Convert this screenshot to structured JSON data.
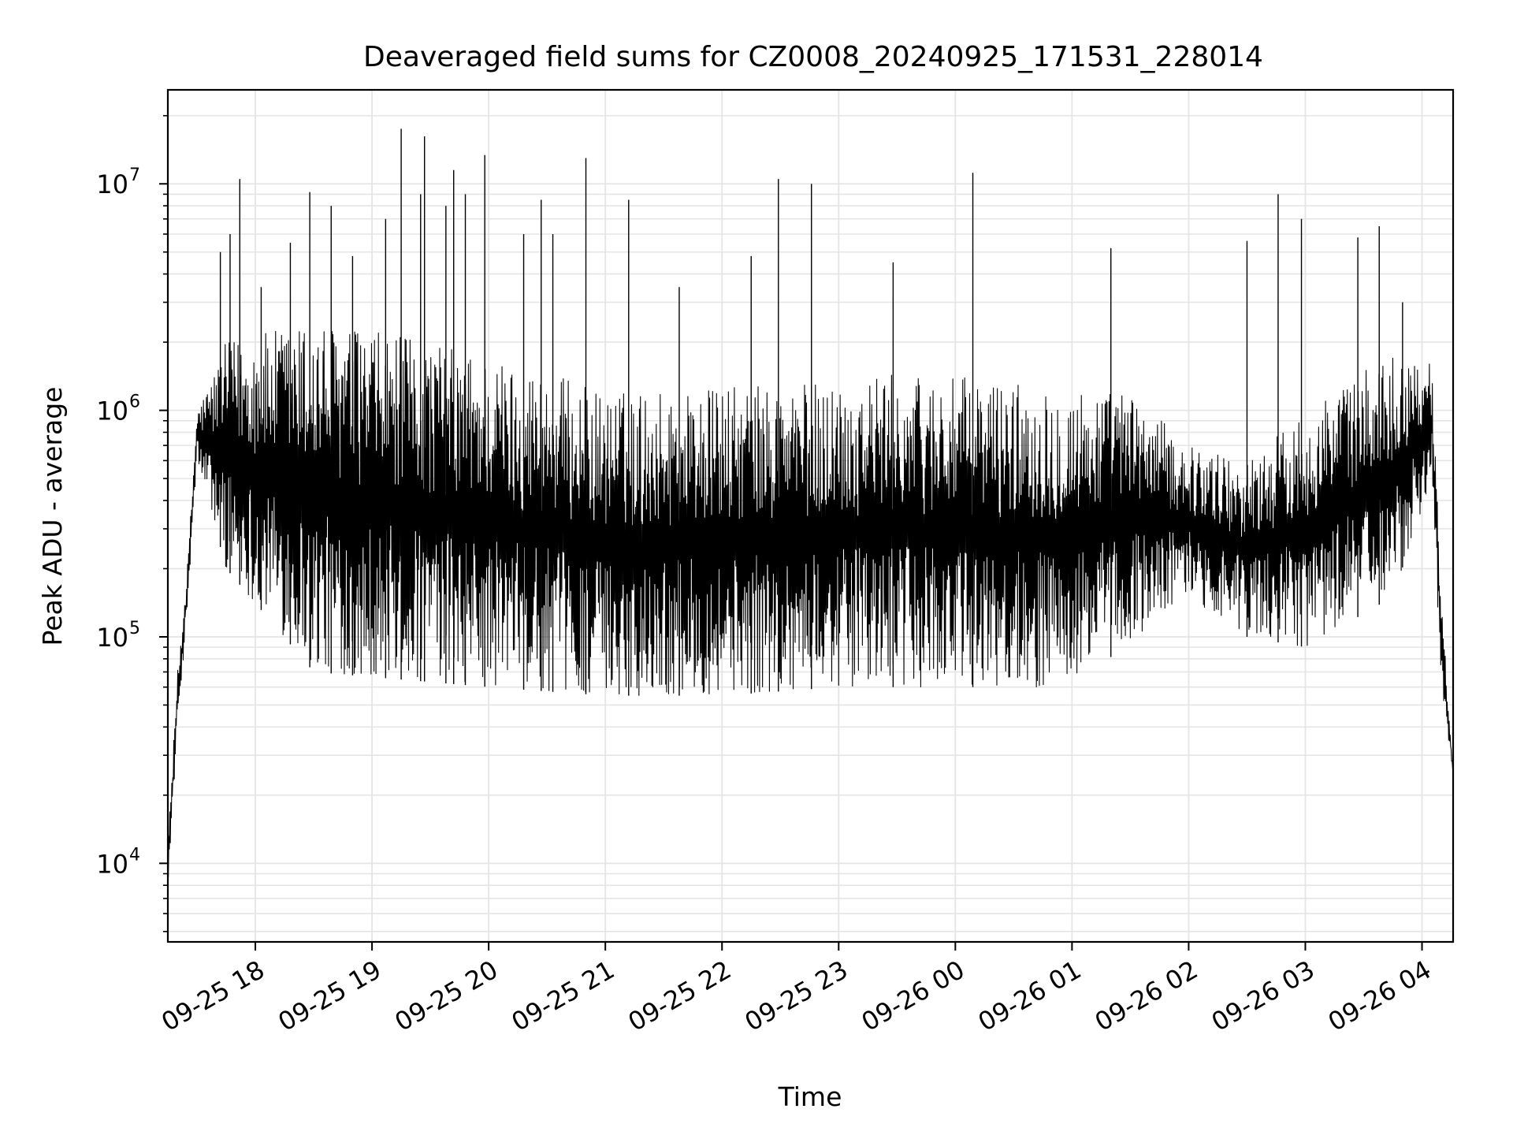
{
  "chart_data": {
    "type": "line",
    "title": "Deaveraged field sums for CZ0008_20240925_171531_228014",
    "xlabel": "Time",
    "ylabel": "Peak ADU - average",
    "yscale": "log",
    "ylim": [
      4500,
      26000000
    ],
    "xlim": [
      "2024-09-25 17:15",
      "2024-09-26 04:16"
    ],
    "grid": true,
    "line_color": "#000000",
    "grid_color": "#e5e5e5",
    "x_ticks": [
      {
        "value": "2024-09-25 18:00",
        "label": "09-25 18"
      },
      {
        "value": "2024-09-25 19:00",
        "label": "09-25 19"
      },
      {
        "value": "2024-09-25 20:00",
        "label": "09-25 20"
      },
      {
        "value": "2024-09-25 21:00",
        "label": "09-25 21"
      },
      {
        "value": "2024-09-25 22:00",
        "label": "09-25 22"
      },
      {
        "value": "2024-09-25 23:00",
        "label": "09-25 23"
      },
      {
        "value": "2024-09-26 00:00",
        "label": "09-26 00"
      },
      {
        "value": "2024-09-26 01:00",
        "label": "09-26 01"
      },
      {
        "value": "2024-09-26 02:00",
        "label": "09-26 02"
      },
      {
        "value": "2024-09-26 03:00",
        "label": "09-26 03"
      },
      {
        "value": "2024-09-26 04:00",
        "label": "09-26 04"
      }
    ],
    "y_ticks": [
      {
        "value": 10000,
        "base": "10",
        "exp": "4"
      },
      {
        "value": 100000,
        "base": "10",
        "exp": "5"
      },
      {
        "value": 1000000,
        "base": "10",
        "exp": "6"
      },
      {
        "value": 10000000,
        "base": "10",
        "exp": "7"
      }
    ],
    "envelope": {
      "description_time_unit": "time",
      "upper": [
        {
          "t": "2024-09-25 17:15",
          "y": 12000
        },
        {
          "t": "2024-09-25 17:20",
          "y": 70000
        },
        {
          "t": "2024-09-25 17:25",
          "y": 200000
        },
        {
          "t": "2024-09-25 17:30",
          "y": 1000000
        },
        {
          "t": "2024-09-25 17:45",
          "y": 2000000
        },
        {
          "t": "2024-09-25 18:30",
          "y": 2500000
        },
        {
          "t": "2024-09-25 19:30",
          "y": 2000000
        },
        {
          "t": "2024-09-25 20:30",
          "y": 1500000
        },
        {
          "t": "2024-09-25 21:00",
          "y": 1200000
        },
        {
          "t": "2024-09-25 22:30",
          "y": 1300000
        },
        {
          "t": "2024-09-25 23:30",
          "y": 1450000
        },
        {
          "t": "2024-09-26 00:30",
          "y": 1350000
        },
        {
          "t": "2024-09-26 01:30",
          "y": 1200000
        },
        {
          "t": "2024-09-26 02:00",
          "y": 700000
        },
        {
          "t": "2024-09-26 02:30",
          "y": 600000
        },
        {
          "t": "2024-09-26 03:00",
          "y": 1000000
        },
        {
          "t": "2024-09-26 03:45",
          "y": 1800000
        },
        {
          "t": "2024-09-26 04:05",
          "y": 1600000
        },
        {
          "t": "2024-09-26 04:10",
          "y": 150000
        },
        {
          "t": "2024-09-26 04:16",
          "y": 25000
        }
      ],
      "lower": [
        {
          "t": "2024-09-25 17:15",
          "y": 8000
        },
        {
          "t": "2024-09-25 17:20",
          "y": 40000
        },
        {
          "t": "2024-09-25 17:25",
          "y": 130000
        },
        {
          "t": "2024-09-25 17:30",
          "y": 600000
        },
        {
          "t": "2024-09-25 17:45",
          "y": 200000
        },
        {
          "t": "2024-09-25 18:30",
          "y": 70000
        },
        {
          "t": "2024-09-25 20:00",
          "y": 60000
        },
        {
          "t": "2024-09-25 21:00",
          "y": 55000
        },
        {
          "t": "2024-09-25 22:00",
          "y": 55000
        },
        {
          "t": "2024-09-25 23:00",
          "y": 60000
        },
        {
          "t": "2024-09-26 00:00",
          "y": 60000
        },
        {
          "t": "2024-09-26 01:00",
          "y": 60000
        },
        {
          "t": "2024-09-26 02:00",
          "y": 150000
        },
        {
          "t": "2024-09-26 02:30",
          "y": 100000
        },
        {
          "t": "2024-09-26 03:00",
          "y": 90000
        },
        {
          "t": "2024-09-26 03:45",
          "y": 150000
        },
        {
          "t": "2024-09-26 04:05",
          "y": 500000
        },
        {
          "t": "2024-09-26 04:10",
          "y": 60000
        },
        {
          "t": "2024-09-26 04:16",
          "y": 25000
        }
      ]
    },
    "spikes": [
      {
        "t": "2024-09-25 17:42",
        "y": 5000000
      },
      {
        "t": "2024-09-25 17:47",
        "y": 6000000
      },
      {
        "t": "2024-09-25 17:52",
        "y": 10500000
      },
      {
        "t": "2024-09-25 18:03",
        "y": 3500000
      },
      {
        "t": "2024-09-25 18:18",
        "y": 5500000
      },
      {
        "t": "2024-09-25 18:28",
        "y": 9200000
      },
      {
        "t": "2024-09-25 18:39",
        "y": 8000000
      },
      {
        "t": "2024-09-25 18:50",
        "y": 4800000
      },
      {
        "t": "2024-09-25 19:07",
        "y": 7000000
      },
      {
        "t": "2024-09-25 19:15",
        "y": 17500000
      },
      {
        "t": "2024-09-25 19:25",
        "y": 9000000
      },
      {
        "t": "2024-09-25 19:27",
        "y": 16200000
      },
      {
        "t": "2024-09-25 19:38",
        "y": 8000000
      },
      {
        "t": "2024-09-25 19:42",
        "y": 11500000
      },
      {
        "t": "2024-09-25 19:48",
        "y": 9000000
      },
      {
        "t": "2024-09-25 19:58",
        "y": 13400000
      },
      {
        "t": "2024-09-25 20:18",
        "y": 6000000
      },
      {
        "t": "2024-09-25 20:27",
        "y": 8500000
      },
      {
        "t": "2024-09-25 20:33",
        "y": 6000000
      },
      {
        "t": "2024-09-25 20:50",
        "y": 13000000
      },
      {
        "t": "2024-09-25 21:12",
        "y": 8500000
      },
      {
        "t": "2024-09-25 21:38",
        "y": 3500000
      },
      {
        "t": "2024-09-25 22:15",
        "y": 4800000
      },
      {
        "t": "2024-09-25 22:29",
        "y": 10500000
      },
      {
        "t": "2024-09-25 22:46",
        "y": 10000000
      },
      {
        "t": "2024-09-25 23:28",
        "y": 4500000
      },
      {
        "t": "2024-09-26 00:09",
        "y": 11200000
      },
      {
        "t": "2024-09-26 01:20",
        "y": 5200000
      },
      {
        "t": "2024-09-26 02:30",
        "y": 5600000
      },
      {
        "t": "2024-09-26 02:46",
        "y": 9000000
      },
      {
        "t": "2024-09-26 02:58",
        "y": 7000000
      },
      {
        "t": "2024-09-26 03:27",
        "y": 5800000
      },
      {
        "t": "2024-09-26 03:38",
        "y": 6500000
      },
      {
        "t": "2024-09-26 03:50",
        "y": 3000000
      }
    ]
  }
}
